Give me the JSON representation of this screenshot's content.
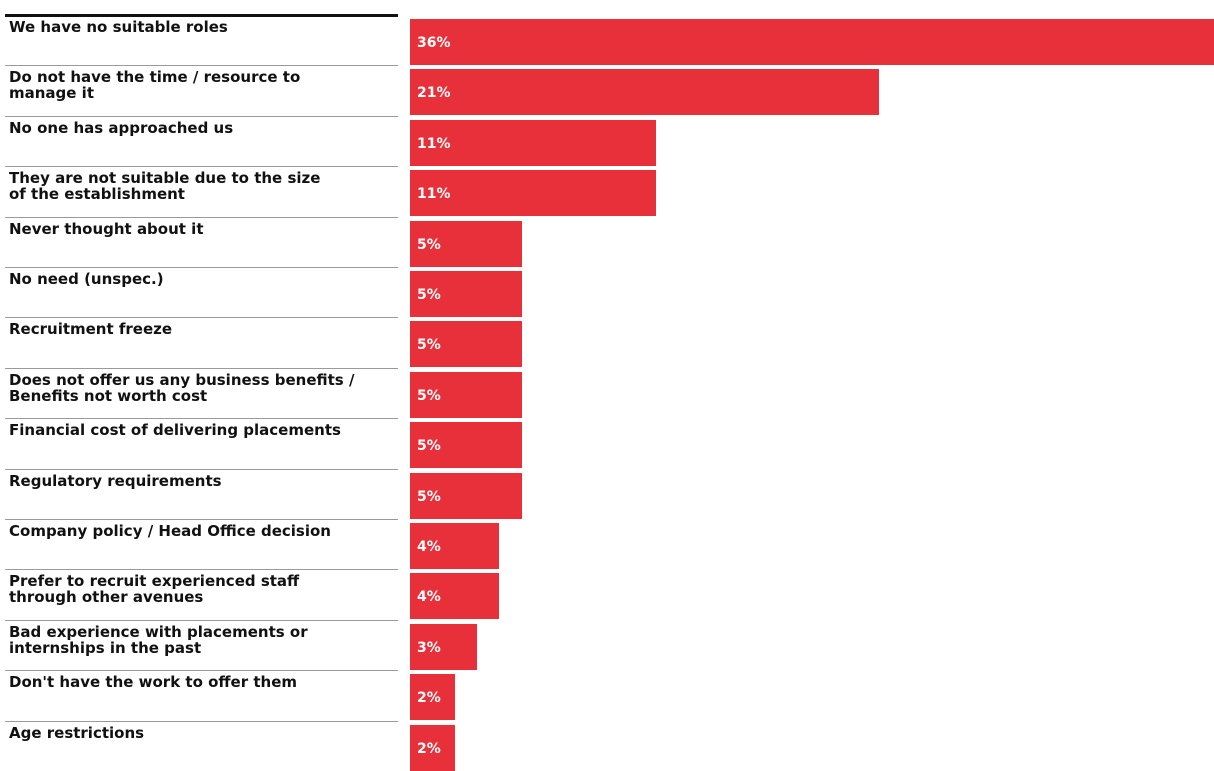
{
  "chart_data": {
    "type": "bar",
    "orientation": "horizontal",
    "bar_color": "#e8303a",
    "categories": [
      "We have no suitable roles",
      "Do not have the time / resource to\nmanage it",
      "No one has approached us",
      "They are not suitable due to the size\nof the establishment",
      "Never thought about it",
      "No need (unspec.)",
      "Recruitment freeze",
      "Does not offer us any business benefits /\nBenefits not worth cost",
      "Financial cost of delivering placements",
      "Regulatory requirements",
      "Company policy / Head Office decision",
      "Prefer to recruit experienced staff\nthrough other avenues",
      "Bad experience with placements or\ninternships in the past",
      "Don't have the work to offer them",
      "Age restrictions"
    ],
    "values": [
      36,
      21,
      11,
      11,
      5,
      5,
      5,
      5,
      5,
      5,
      4,
      4,
      3,
      2,
      2
    ],
    "data_labels": [
      "36%",
      "21%",
      "11%",
      "11%",
      "5%",
      "5%",
      "5%",
      "5%",
      "5%",
      "5%",
      "4%",
      "4%",
      "3%",
      "2%",
      "2%"
    ],
    "xlim": [
      0,
      36
    ],
    "grid": false,
    "legend": "none"
  }
}
